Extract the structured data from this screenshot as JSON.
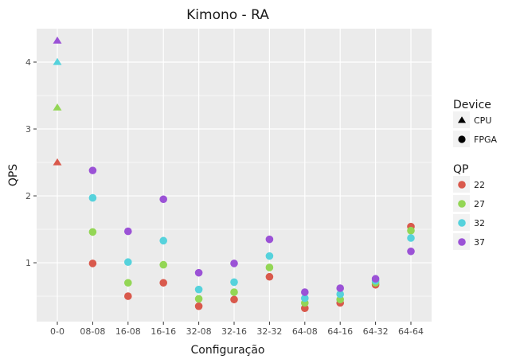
{
  "chart_data": {
    "type": "scatter",
    "title": "Kimono - RA",
    "xlabel": "Configuração",
    "ylabel": "QPS",
    "categories": [
      "0-0",
      "08-08",
      "16-08",
      "16-16",
      "32-08",
      "32-16",
      "32-32",
      "64-08",
      "64-16",
      "64-32",
      "64-64"
    ],
    "ylim": [
      0.12,
      4.5
    ],
    "yticks": [
      1,
      2,
      3,
      4
    ],
    "grid": true,
    "panel_background": "#ebebeb",
    "grid_color": "#ffffff",
    "legend_position": "right",
    "legends": {
      "device": {
        "title": "Device",
        "entries": [
          {
            "label": "CPU",
            "shape": "triangle"
          },
          {
            "label": "FPGA",
            "shape": "circle"
          }
        ]
      },
      "qp": {
        "title": "QP",
        "entries": [
          {
            "label": "22",
            "color": "#d9594c"
          },
          {
            "label": "27",
            "color": "#93d655"
          },
          {
            "label": "32",
            "color": "#56d2dc"
          },
          {
            "label": "37",
            "color": "#9b52d6"
          }
        ]
      }
    },
    "series": [
      {
        "name": "22",
        "color": "#d9594c",
        "points": [
          {
            "x": "0-0",
            "y": 2.5,
            "device": "CPU"
          },
          {
            "x": "08-08",
            "y": 0.99,
            "device": "FPGA"
          },
          {
            "x": "16-08",
            "y": 0.5,
            "device": "FPGA"
          },
          {
            "x": "16-16",
            "y": 0.7,
            "device": "FPGA"
          },
          {
            "x": "32-08",
            "y": 0.35,
            "device": "FPGA"
          },
          {
            "x": "32-16",
            "y": 0.45,
            "device": "FPGA"
          },
          {
            "x": "32-32",
            "y": 0.79,
            "device": "FPGA"
          },
          {
            "x": "64-08",
            "y": 0.32,
            "device": "FPGA"
          },
          {
            "x": "64-16",
            "y": 0.4,
            "device": "FPGA"
          },
          {
            "x": "64-32",
            "y": 0.67,
            "device": "FPGA"
          },
          {
            "x": "64-64",
            "y": 1.54,
            "device": "FPGA"
          }
        ]
      },
      {
        "name": "27",
        "color": "#93d655",
        "points": [
          {
            "x": "0-0",
            "y": 3.32,
            "device": "CPU"
          },
          {
            "x": "08-08",
            "y": 1.46,
            "device": "FPGA"
          },
          {
            "x": "16-08",
            "y": 0.7,
            "device": "FPGA"
          },
          {
            "x": "16-16",
            "y": 0.97,
            "device": "FPGA"
          },
          {
            "x": "32-08",
            "y": 0.46,
            "device": "FPGA"
          },
          {
            "x": "32-16",
            "y": 0.56,
            "device": "FPGA"
          },
          {
            "x": "32-32",
            "y": 0.93,
            "device": "FPGA"
          },
          {
            "x": "64-08",
            "y": 0.4,
            "device": "FPGA"
          },
          {
            "x": "64-16",
            "y": 0.45,
            "device": "FPGA"
          },
          {
            "x": "64-32",
            "y": 0.7,
            "device": "FPGA"
          },
          {
            "x": "64-64",
            "y": 1.48,
            "device": "FPGA"
          }
        ]
      },
      {
        "name": "32",
        "color": "#56d2dc",
        "points": [
          {
            "x": "0-0",
            "y": 4.0,
            "device": "CPU"
          },
          {
            "x": "08-08",
            "y": 1.97,
            "device": "FPGA"
          },
          {
            "x": "16-08",
            "y": 1.01,
            "device": "FPGA"
          },
          {
            "x": "16-16",
            "y": 1.33,
            "device": "FPGA"
          },
          {
            "x": "32-08",
            "y": 0.6,
            "device": "FPGA"
          },
          {
            "x": "32-16",
            "y": 0.71,
            "device": "FPGA"
          },
          {
            "x": "32-32",
            "y": 1.1,
            "device": "FPGA"
          },
          {
            "x": "64-08",
            "y": 0.47,
            "device": "FPGA"
          },
          {
            "x": "64-16",
            "y": 0.53,
            "device": "FPGA"
          },
          {
            "x": "64-32",
            "y": 0.73,
            "device": "FPGA"
          },
          {
            "x": "64-64",
            "y": 1.37,
            "device": "FPGA"
          }
        ]
      },
      {
        "name": "37",
        "color": "#9b52d6",
        "points": [
          {
            "x": "0-0",
            "y": 4.32,
            "device": "CPU"
          },
          {
            "x": "08-08",
            "y": 2.38,
            "device": "FPGA"
          },
          {
            "x": "16-08",
            "y": 1.47,
            "device": "FPGA"
          },
          {
            "x": "16-16",
            "y": 1.95,
            "device": "FPGA"
          },
          {
            "x": "32-08",
            "y": 0.85,
            "device": "FPGA"
          },
          {
            "x": "32-16",
            "y": 0.99,
            "device": "FPGA"
          },
          {
            "x": "32-32",
            "y": 1.35,
            "device": "FPGA"
          },
          {
            "x": "64-08",
            "y": 0.56,
            "device": "FPGA"
          },
          {
            "x": "64-16",
            "y": 0.62,
            "device": "FPGA"
          },
          {
            "x": "64-32",
            "y": 0.76,
            "device": "FPGA"
          },
          {
            "x": "64-64",
            "y": 1.17,
            "device": "FPGA"
          }
        ]
      }
    ]
  }
}
